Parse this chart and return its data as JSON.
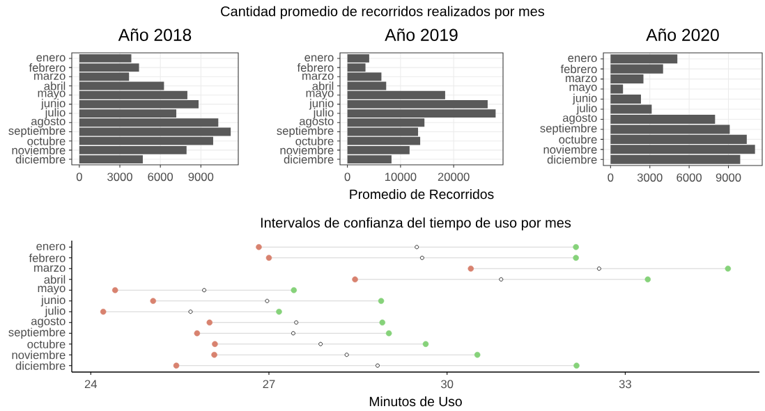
{
  "chart_data": [
    {
      "type": "bar",
      "orientation": "horizontal",
      "title": "Año 2018",
      "categories": [
        "enero",
        "febrero",
        "marzo",
        "abril",
        "mayo",
        "junio",
        "julio",
        "agosto",
        "septiembre",
        "octubre",
        "noviembre",
        "diciembre"
      ],
      "values": [
        3850,
        4420,
        3680,
        6270,
        8000,
        8830,
        7180,
        10290,
        11210,
        9910,
        7940,
        4700
      ],
      "color": "#595959",
      "xlim": [
        -560,
        11770
      ],
      "xticks": [
        0,
        3000,
        6000,
        9000
      ],
      "grid": true
    },
    {
      "type": "bar",
      "orientation": "horizontal",
      "title": "Cantidad promedio de recorridos realizados por mes",
      "subtitle": "Año 2019",
      "xlabel": "Promedio de Recorridos",
      "categories": [
        "enero",
        "febrero",
        "marzo",
        "abril",
        "mayo",
        "junio",
        "julio",
        "agosto",
        "septiembre",
        "octubre",
        "noviembre",
        "diciembre"
      ],
      "values": [
        4100,
        3400,
        6400,
        7300,
        18400,
        26400,
        27900,
        14500,
        13300,
        13700,
        11700,
        8300
      ],
      "color": "#595959",
      "xlim": [
        -1395,
        29295
      ],
      "xticks": [
        0,
        10000,
        20000
      ],
      "grid": true
    },
    {
      "type": "bar",
      "orientation": "horizontal",
      "title": "Año 2020",
      "categories": [
        "enero",
        "febrero",
        "marzo",
        "mayo",
        "junio",
        "julio",
        "agosto",
        "septiembre",
        "octubre",
        "noviembre",
        "diciembre"
      ],
      "values": [
        5100,
        4010,
        2510,
        950,
        2320,
        3140,
        7980,
        9100,
        10400,
        11030,
        9900
      ],
      "color": "#595959",
      "xlim": [
        -550,
        11580
      ],
      "xticks": [
        0,
        3000,
        6000,
        9000
      ],
      "grid": true
    },
    {
      "type": "scatter",
      "orientation": "horizontal",
      "title": "Intervalos de confianza del tiempo de uso por mes",
      "xlabel": "Minutos de Uso",
      "categories": [
        "enero",
        "febrero",
        "marzo",
        "abril",
        "mayo",
        "junio",
        "julio",
        "agosto",
        "septiembre",
        "octubre",
        "noviembre",
        "diciembre"
      ],
      "xlim": [
        23.68,
        35.26
      ],
      "xticks": [
        24,
        27,
        30,
        33
      ],
      "marker": "circle",
      "series": [
        {
          "color": "#d8826f",
          "values": [
            26.83,
            27.0,
            30.4,
            28.45,
            24.41,
            25.05,
            24.21,
            26.0,
            25.79,
            26.09,
            26.08,
            25.44
          ]
        },
        {
          "color": "#ffffff",
          "values": [
            29.49,
            29.58,
            32.56,
            30.91,
            25.91,
            26.97,
            25.68,
            27.46,
            27.41,
            27.87,
            28.31,
            28.83
          ]
        },
        {
          "color": "#86d27a",
          "values": [
            32.17,
            32.17,
            34.73,
            33.38,
            27.42,
            28.89,
            27.17,
            28.91,
            29.02,
            29.64,
            30.51,
            32.18
          ]
        }
      ]
    }
  ]
}
